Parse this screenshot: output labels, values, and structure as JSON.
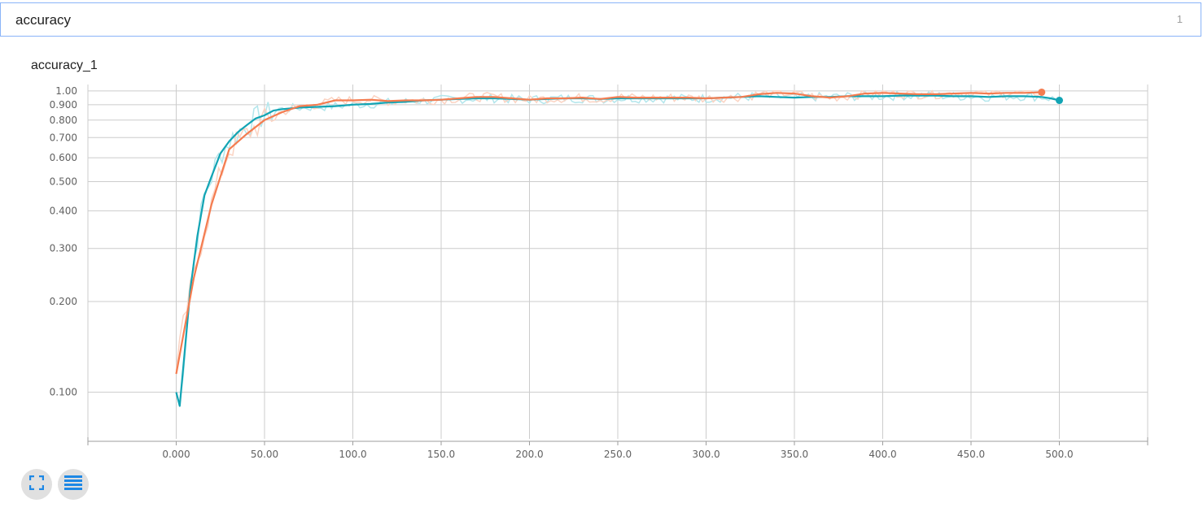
{
  "search": {
    "value": "accuracy",
    "count": "1"
  },
  "card": {
    "title": "accuracy_1"
  },
  "controls": {
    "fit_icon": "fit-domain-icon",
    "log_icon": "toggle-log-scale-icon"
  },
  "colors": {
    "teal": "#12a4b4",
    "orange": "#f47c50",
    "teal_raw": "#b3e6ec",
    "orange_raw": "#fbd3c2",
    "grid": "#cccccc"
  },
  "chart_data": {
    "type": "line",
    "title": "accuracy_1",
    "xlabel": "",
    "ylabel": "",
    "y_scale": "log",
    "grid": true,
    "xlim": [
      -50,
      550
    ],
    "ylim": [
      0.07,
      1.05
    ],
    "x_ticks": [
      0,
      50,
      100,
      150,
      200,
      250,
      300,
      350,
      400,
      450,
      500
    ],
    "x_tick_labels": [
      "0.000",
      "50.00",
      "100.0",
      "150.0",
      "200.0",
      "250.0",
      "300.0",
      "350.0",
      "400.0",
      "450.0",
      "500.0"
    ],
    "y_ticks": [
      0.1,
      0.2,
      0.3,
      0.4,
      0.5,
      0.6,
      0.7,
      0.8,
      0.9,
      1.0
    ],
    "y_tick_labels": [
      "0.100",
      "0.200",
      "0.300",
      "0.400",
      "0.500",
      "0.600",
      "0.700",
      "0.800",
      "0.900",
      "1.00"
    ],
    "series": [
      {
        "color": "#12a4b4",
        "raw_color": "#b3e6ec",
        "x": [
          0,
          2,
          5,
          8,
          12,
          16,
          20,
          25,
          30,
          35,
          40,
          45,
          50,
          55,
          60,
          65,
          70,
          80,
          90,
          100,
          110,
          120,
          130,
          140,
          150,
          160,
          170,
          180,
          190,
          200,
          210,
          220,
          230,
          240,
          250,
          260,
          270,
          280,
          290,
          300,
          310,
          320,
          330,
          340,
          350,
          360,
          370,
          380,
          390,
          400,
          410,
          420,
          430,
          440,
          450,
          460,
          470,
          480,
          490,
          495,
          500
        ],
        "y": [
          0.1,
          0.09,
          0.14,
          0.22,
          0.33,
          0.45,
          0.52,
          0.62,
          0.68,
          0.73,
          0.77,
          0.81,
          0.83,
          0.86,
          0.87,
          0.875,
          0.88,
          0.885,
          0.89,
          0.9,
          0.905,
          0.915,
          0.92,
          0.93,
          0.935,
          0.94,
          0.945,
          0.945,
          0.94,
          0.935,
          0.94,
          0.945,
          0.945,
          0.94,
          0.945,
          0.945,
          0.945,
          0.945,
          0.945,
          0.945,
          0.95,
          0.955,
          0.96,
          0.955,
          0.95,
          0.955,
          0.955,
          0.96,
          0.96,
          0.96,
          0.965,
          0.965,
          0.965,
          0.96,
          0.96,
          0.955,
          0.96,
          0.96,
          0.955,
          0.945,
          0.93
        ]
      },
      {
        "color": "#f47c50",
        "raw_color": "#fbd3c2",
        "x": [
          0,
          10,
          20,
          30,
          40,
          50,
          60,
          70,
          80,
          90,
          100,
          110,
          120,
          130,
          140,
          150,
          160,
          170,
          180,
          190,
          200,
          210,
          220,
          230,
          240,
          250,
          260,
          270,
          280,
          290,
          300,
          310,
          320,
          330,
          340,
          350,
          360,
          370,
          380,
          390,
          400,
          410,
          420,
          430,
          440,
          450,
          460,
          470,
          480,
          490
        ],
        "y": [
          0.115,
          0.24,
          0.42,
          0.64,
          0.72,
          0.8,
          0.85,
          0.89,
          0.9,
          0.93,
          0.93,
          0.935,
          0.925,
          0.93,
          0.93,
          0.935,
          0.945,
          0.955,
          0.955,
          0.945,
          0.935,
          0.945,
          0.945,
          0.95,
          0.94,
          0.955,
          0.95,
          0.95,
          0.95,
          0.95,
          0.945,
          0.95,
          0.955,
          0.975,
          0.985,
          0.98,
          0.96,
          0.95,
          0.96,
          0.98,
          0.985,
          0.98,
          0.975,
          0.975,
          0.98,
          0.985,
          0.98,
          0.985,
          0.985,
          0.99
        ]
      }
    ]
  }
}
